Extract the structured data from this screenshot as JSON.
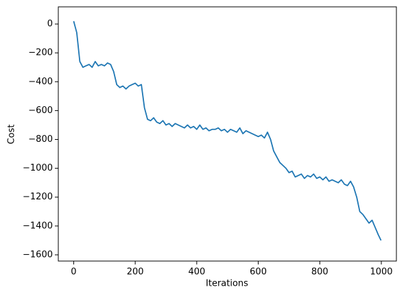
{
  "chart_data": {
    "type": "line",
    "x_label": "Iterations",
    "y_label": "Cost",
    "x": [
      0,
      10,
      20,
      30,
      40,
      50,
      60,
      70,
      80,
      90,
      100,
      110,
      120,
      130,
      140,
      150,
      160,
      170,
      180,
      190,
      200,
      210,
      220,
      230,
      240,
      250,
      260,
      270,
      280,
      290,
      300,
      310,
      320,
      330,
      340,
      350,
      360,
      370,
      380,
      390,
      400,
      410,
      420,
      430,
      440,
      450,
      460,
      470,
      480,
      490,
      500,
      510,
      520,
      530,
      540,
      550,
      560,
      570,
      580,
      590,
      600,
      610,
      620,
      630,
      640,
      650,
      660,
      670,
      680,
      690,
      700,
      710,
      720,
      730,
      740,
      750,
      760,
      770,
      780,
      790,
      800,
      810,
      820,
      830,
      840,
      850,
      860,
      870,
      880,
      890,
      900,
      910,
      920,
      930,
      940,
      950,
      960,
      970,
      980,
      990,
      999
    ],
    "series": [
      {
        "name": "Cost",
        "color": "#1f77b4",
        "values": [
          20,
          -60,
          -260,
          -300,
          -290,
          -280,
          -300,
          -260,
          -290,
          -280,
          -290,
          -270,
          -280,
          -330,
          -420,
          -440,
          -430,
          -450,
          -430,
          -420,
          -410,
          -430,
          -420,
          -580,
          -660,
          -670,
          -650,
          -680,
          -690,
          -670,
          -700,
          -690,
          -710,
          -690,
          -700,
          -710,
          -720,
          -700,
          -720,
          -710,
          -730,
          -700,
          -730,
          -720,
          -740,
          -730,
          -730,
          -720,
          -740,
          -730,
          -750,
          -730,
          -740,
          -750,
          -720,
          -760,
          -740,
          -750,
          -760,
          -770,
          -780,
          -770,
          -790,
          -750,
          -800,
          -880,
          -920,
          -960,
          -980,
          -1000,
          -1030,
          -1020,
          -1060,
          -1050,
          -1040,
          -1070,
          -1050,
          -1060,
          -1040,
          -1070,
          -1060,
          -1080,
          -1060,
          -1090,
          -1080,
          -1090,
          -1100,
          -1080,
          -1110,
          -1120,
          -1090,
          -1130,
          -1200,
          -1300,
          -1320,
          -1350,
          -1380,
          -1360,
          -1410,
          -1460,
          -1500
        ]
      }
    ],
    "xlim": [
      -50,
      1049
    ],
    "xticks": [
      0,
      200,
      400,
      600,
      800,
      1000
    ],
    "ylim": [
      -1643,
      119
    ],
    "yticks": [
      {
        "value": -1600,
        "label": "−1600"
      },
      {
        "value": -1400,
        "label": "−1400"
      },
      {
        "value": -1200,
        "label": "−1200"
      },
      {
        "value": -1000,
        "label": "−1000"
      },
      {
        "value": -800,
        "label": "−800"
      },
      {
        "value": -600,
        "label": "−600"
      },
      {
        "value": -400,
        "label": "−400"
      },
      {
        "value": -200,
        "label": "−200"
      },
      0
    ],
    "grid": false
  }
}
